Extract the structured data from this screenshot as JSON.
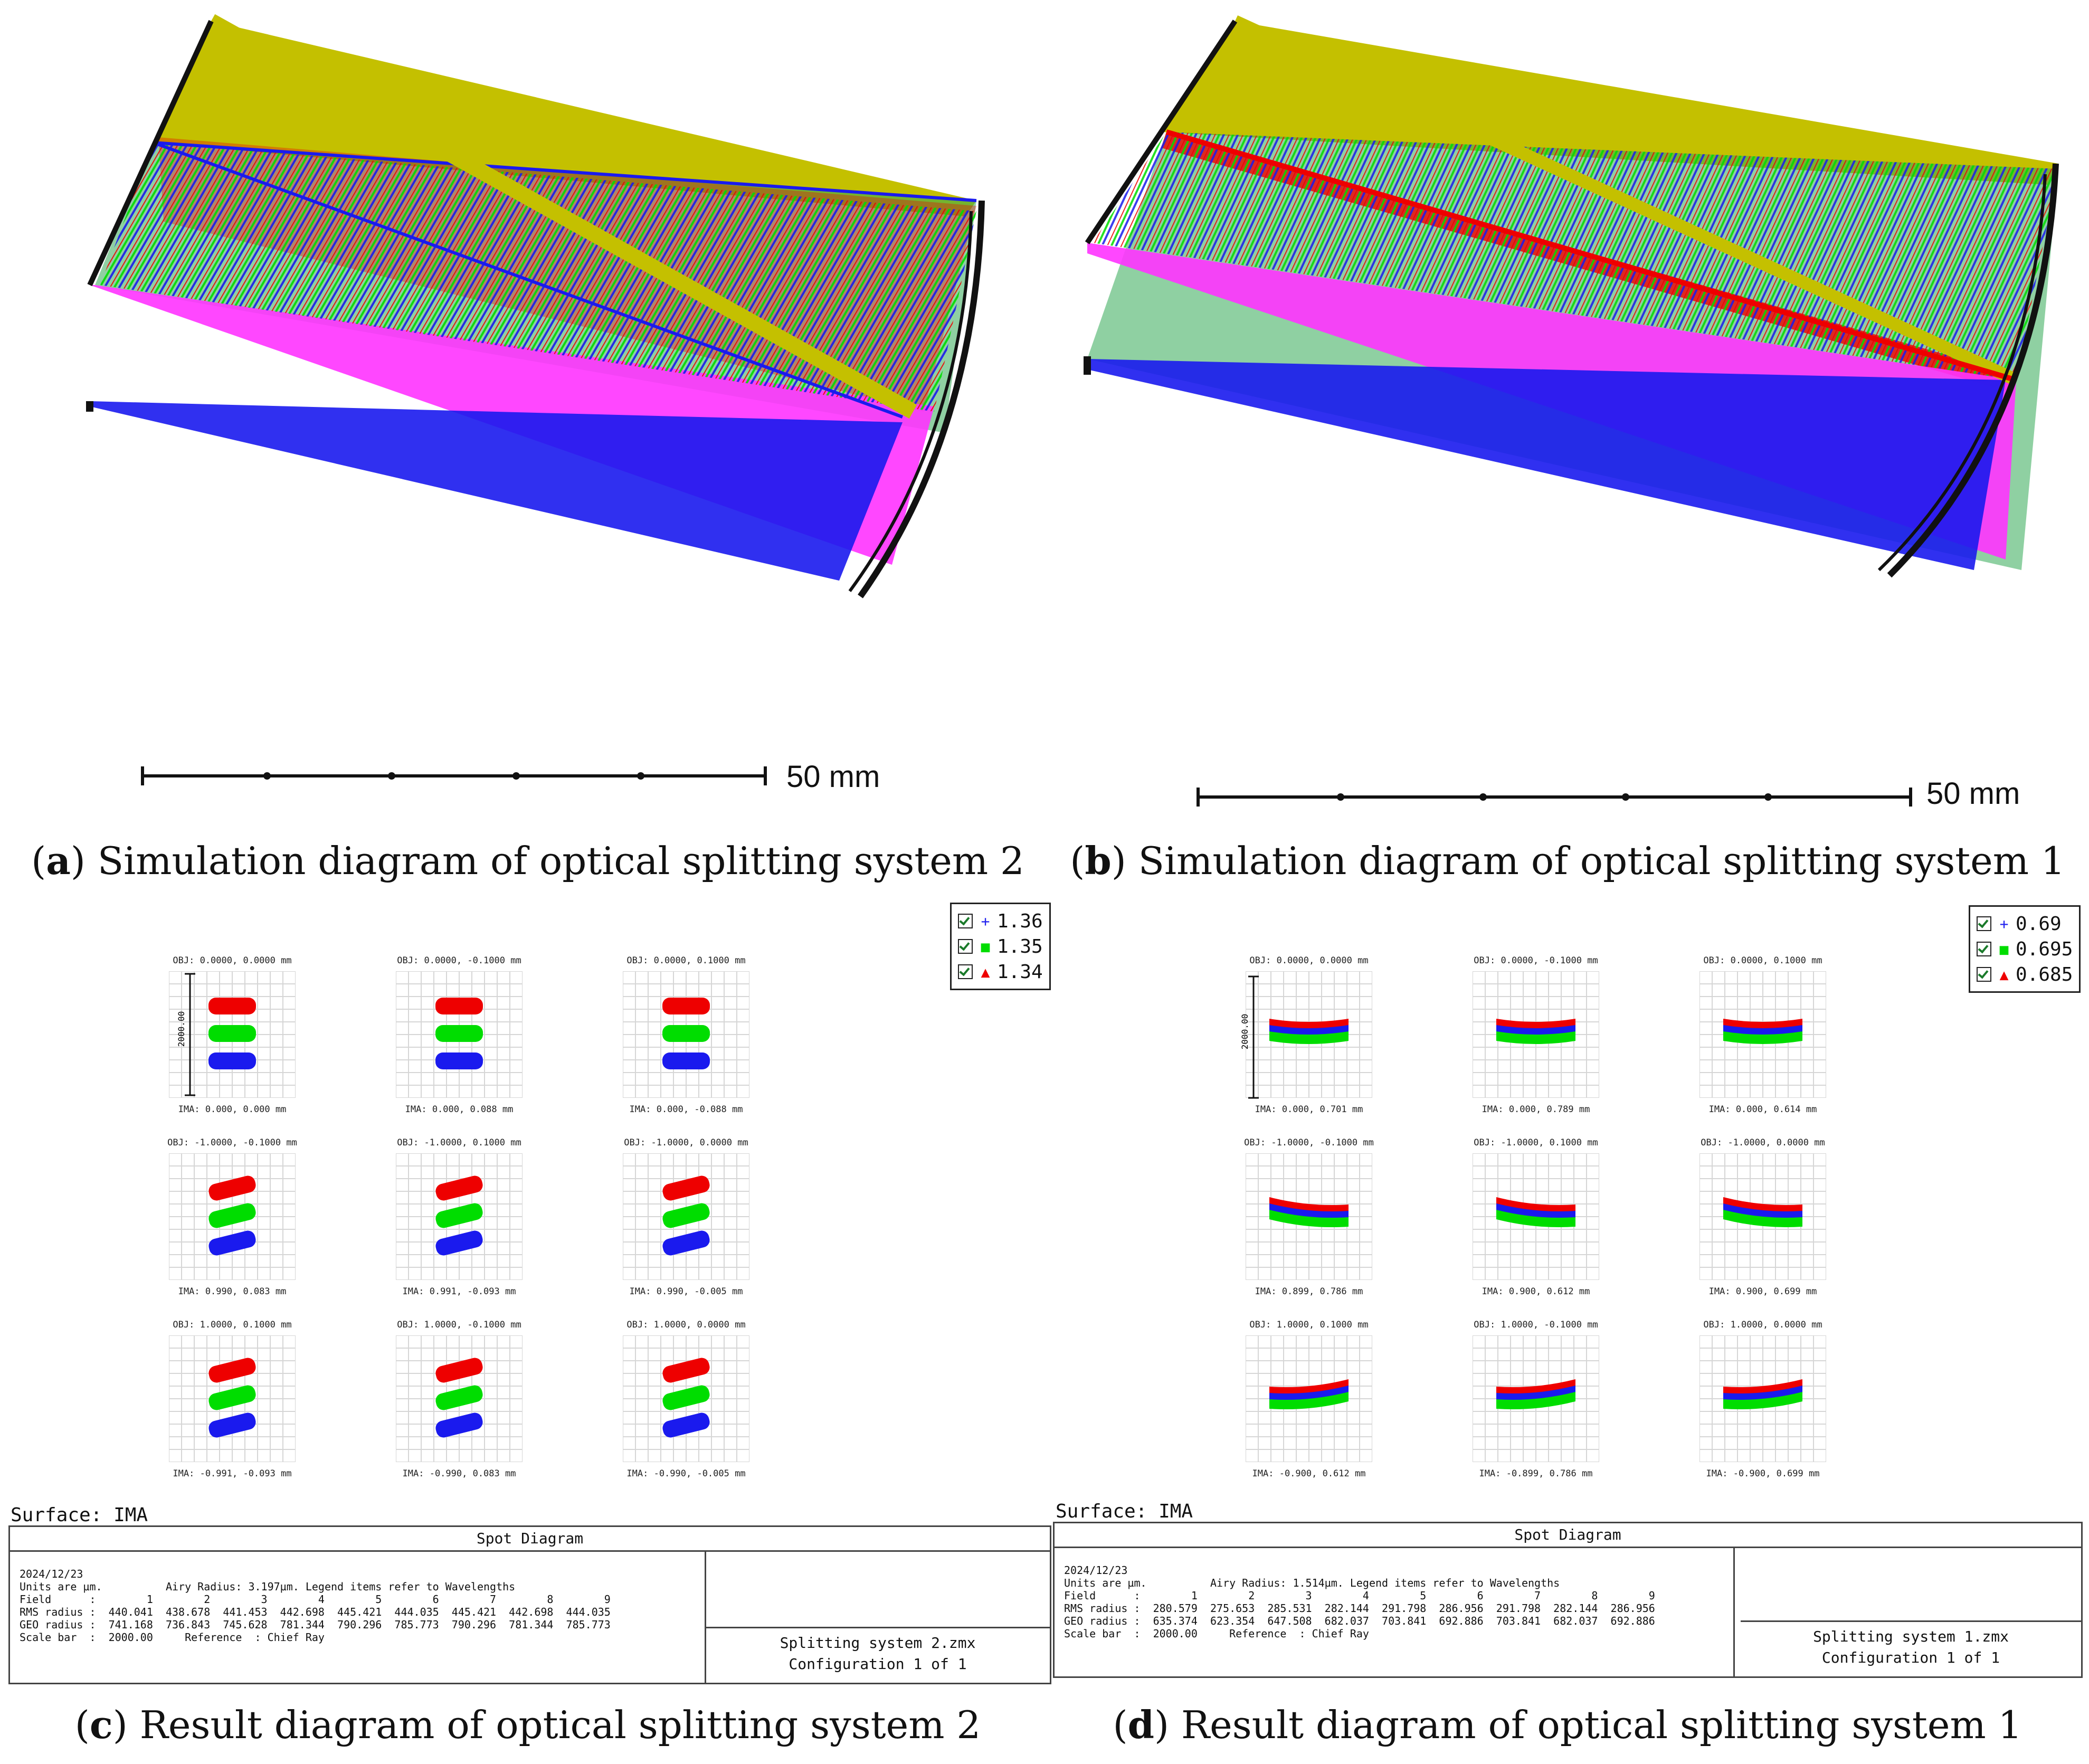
{
  "panels": {
    "a": {
      "letter": "a",
      "caption": "Simulation diagram of optical splitting system 2",
      "scale_label": "50 mm"
    },
    "b": {
      "letter": "b",
      "caption": "Simulation diagram of optical splitting system 1",
      "scale_label": "50 mm"
    },
    "c": {
      "letter": "c",
      "caption": "Result diagram of optical splitting system 2",
      "legend": [
        {
          "symbol": "+",
          "value": "1.36",
          "color": "#2222ee"
        },
        {
          "symbol": "■",
          "value": "1.35",
          "color": "#00dd00"
        },
        {
          "symbol": "▲",
          "value": "1.34",
          "color": "#ee0000"
        }
      ],
      "scale_axis": "2000.00",
      "cells": [
        {
          "obj": "OBJ: 0.0000, 0.0000 mm",
          "ima": "IMA: 0.000, 0.000 mm"
        },
        {
          "obj": "OBJ: 0.0000, -0.1000 mm",
          "ima": "IMA: 0.000, 0.088 mm"
        },
        {
          "obj": "OBJ: 0.0000, 0.1000 mm",
          "ima": "IMA: 0.000, -0.088 mm"
        },
        {
          "obj": "OBJ: -1.0000, -0.1000 mm",
          "ima": "IMA: 0.990, 0.083 mm"
        },
        {
          "obj": "OBJ: -1.0000, 0.1000 mm",
          "ima": "IMA: 0.991, -0.093 mm"
        },
        {
          "obj": "OBJ: -1.0000, 0.0000 mm",
          "ima": "IMA: 0.990, -0.005 mm"
        },
        {
          "obj": "OBJ: 1.0000, 0.1000 mm",
          "ima": "IMA: -0.991, -0.093 mm"
        },
        {
          "obj": "OBJ: 1.0000, -0.1000 mm",
          "ima": "IMA: -0.990, 0.083 mm"
        },
        {
          "obj": "OBJ: 1.0000, 0.0000 mm",
          "ima": "IMA: -0.990, -0.005 mm"
        }
      ],
      "surface": "Surface: IMA",
      "table_title": "Spot Diagram",
      "date": "2024/12/23",
      "units_line": "Units are µm.          Airy Radius: 3.197µm. Legend items refer to Wavelengths",
      "field_line": "Field      :        1        2        3        4        5        6        7        8        9",
      "rms_line": "RMS radius :  440.041  438.678  441.453  442.698  445.421  444.035  445.421  442.698  444.035",
      "geo_line": "GEO radius :  741.168  736.843  745.628  781.344  790.296  785.773  790.296  781.344  785.773",
      "scale_line": "Scale bar  :  2000.00     Reference  : Chief Ray",
      "file": "Splitting system 2.zmx",
      "config": "Configuration 1 of 1"
    },
    "d": {
      "letter": "d",
      "caption": "Result diagram of optical splitting system 1",
      "legend": [
        {
          "symbol": "+",
          "value": "0.69",
          "color": "#2222ee"
        },
        {
          "symbol": "■",
          "value": "0.695",
          "color": "#00dd00"
        },
        {
          "symbol": "▲",
          "value": "0.685",
          "color": "#ee0000"
        }
      ],
      "scale_axis": "2000.00",
      "cells": [
        {
          "obj": "OBJ: 0.0000, 0.0000 mm",
          "ima": "IMA: 0.000, 0.701 mm"
        },
        {
          "obj": "OBJ: 0.0000, -0.1000 mm",
          "ima": "IMA: 0.000, 0.789 mm"
        },
        {
          "obj": "OBJ: 0.0000, 0.1000 mm",
          "ima": "IMA: 0.000, 0.614 mm"
        },
        {
          "obj": "OBJ: -1.0000, -0.1000 mm",
          "ima": "IMA: 0.899, 0.786 mm"
        },
        {
          "obj": "OBJ: -1.0000, 0.1000 mm",
          "ima": "IMA: 0.900, 0.612 mm"
        },
        {
          "obj": "OBJ: -1.0000, 0.0000 mm",
          "ima": "IMA: 0.900, 0.699 mm"
        },
        {
          "obj": "OBJ: 1.0000, 0.1000 mm",
          "ima": "IMA: -0.900, 0.612 mm"
        },
        {
          "obj": "OBJ: 1.0000, -0.1000 mm",
          "ima": "IMA: -0.899, 0.786 mm"
        },
        {
          "obj": "OBJ: 1.0000, 0.0000 mm",
          "ima": "IMA: -0.900, 0.699 mm"
        }
      ],
      "surface": "Surface: IMA",
      "table_title": "Spot Diagram",
      "date": "2024/12/23",
      "units_line": "Units are µm.          Airy Radius: 1.514µm. Legend items refer to Wavelengths",
      "field_line": "Field      :        1        2        3        4        5        6        7        8        9",
      "rms_line": "RMS radius :  280.579  275.653  285.531  282.144  291.798  286.956  291.798  282.144  286.956",
      "geo_line": "GEO radius :  635.374  623.354  647.508  682.037  703.841  692.886  703.841  682.037  692.886",
      "scale_line": "Scale bar  :  2000.00     Reference  : Chief Ray",
      "file": "Splitting system 1.zmx",
      "config": "Configuration 1 of 1"
    }
  },
  "colors": {
    "red": "#ee0000",
    "green": "#00dd00",
    "blue": "#1a1aee",
    "magenta": "#ff33ff",
    "olive": "#c4c000",
    "black": "#111111"
  }
}
